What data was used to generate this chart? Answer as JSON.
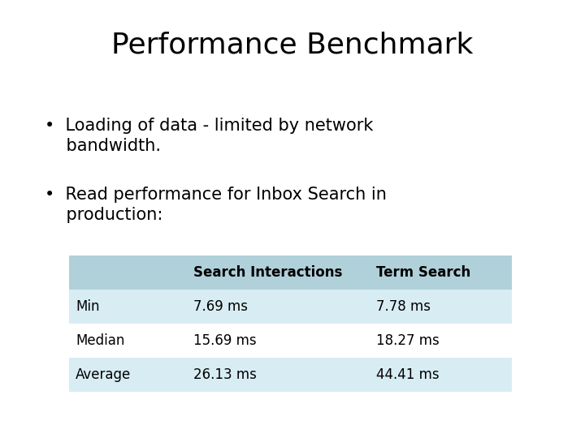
{
  "title": "Performance Benchmark",
  "bullets": [
    "•  Loading of data - limited by network\n    bandwidth.",
    "•  Read performance for Inbox Search in\n    production:"
  ],
  "table_header": [
    "",
    "Search Interactions",
    "Term Search"
  ],
  "table_rows": [
    [
      "Min",
      "7.69 ms",
      "7.78 ms"
    ],
    [
      "Median",
      "15.69 ms",
      "18.27 ms"
    ],
    [
      "Average",
      "26.13 ms",
      "44.41 ms"
    ]
  ],
  "header_bg": "#b0d0da",
  "row_bg_odd": "#d8edf3",
  "row_bg_even": "#ffffff",
  "bg_color": "#ffffff",
  "title_fontsize": 26,
  "bullet_fontsize": 15,
  "table_fontsize": 12,
  "table_header_fontsize": 12
}
